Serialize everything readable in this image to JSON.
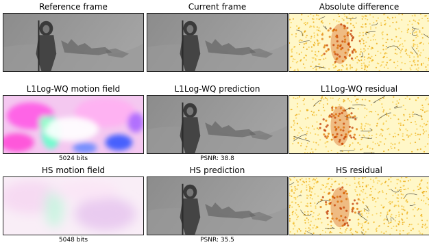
{
  "figure": {
    "rows": [
      {
        "panels": [
          {
            "title": "Reference frame",
            "caption": "",
            "kind": "gray"
          },
          {
            "title": "Current frame",
            "caption": "",
            "kind": "gray"
          },
          {
            "title": "Absolute difference",
            "caption": "",
            "kind": "diff"
          }
        ]
      },
      {
        "panels": [
          {
            "title": "L1Log-WQ motion field",
            "caption": "5024 bits",
            "kind": "flow_strong"
          },
          {
            "title": "L1Log-WQ prediction",
            "caption": "PSNR: 38.8",
            "kind": "gray"
          },
          {
            "title": "L1Log-WQ residual",
            "caption": "",
            "kind": "residual"
          }
        ]
      },
      {
        "panels": [
          {
            "title": "HS motion field",
            "caption": "5048 bits",
            "kind": "flow_soft"
          },
          {
            "title": "HS prediction",
            "caption": "PSNR: 35.5",
            "kind": "gray"
          },
          {
            "title": "HS residual",
            "caption": "",
            "kind": "diff"
          }
        ]
      }
    ]
  }
}
